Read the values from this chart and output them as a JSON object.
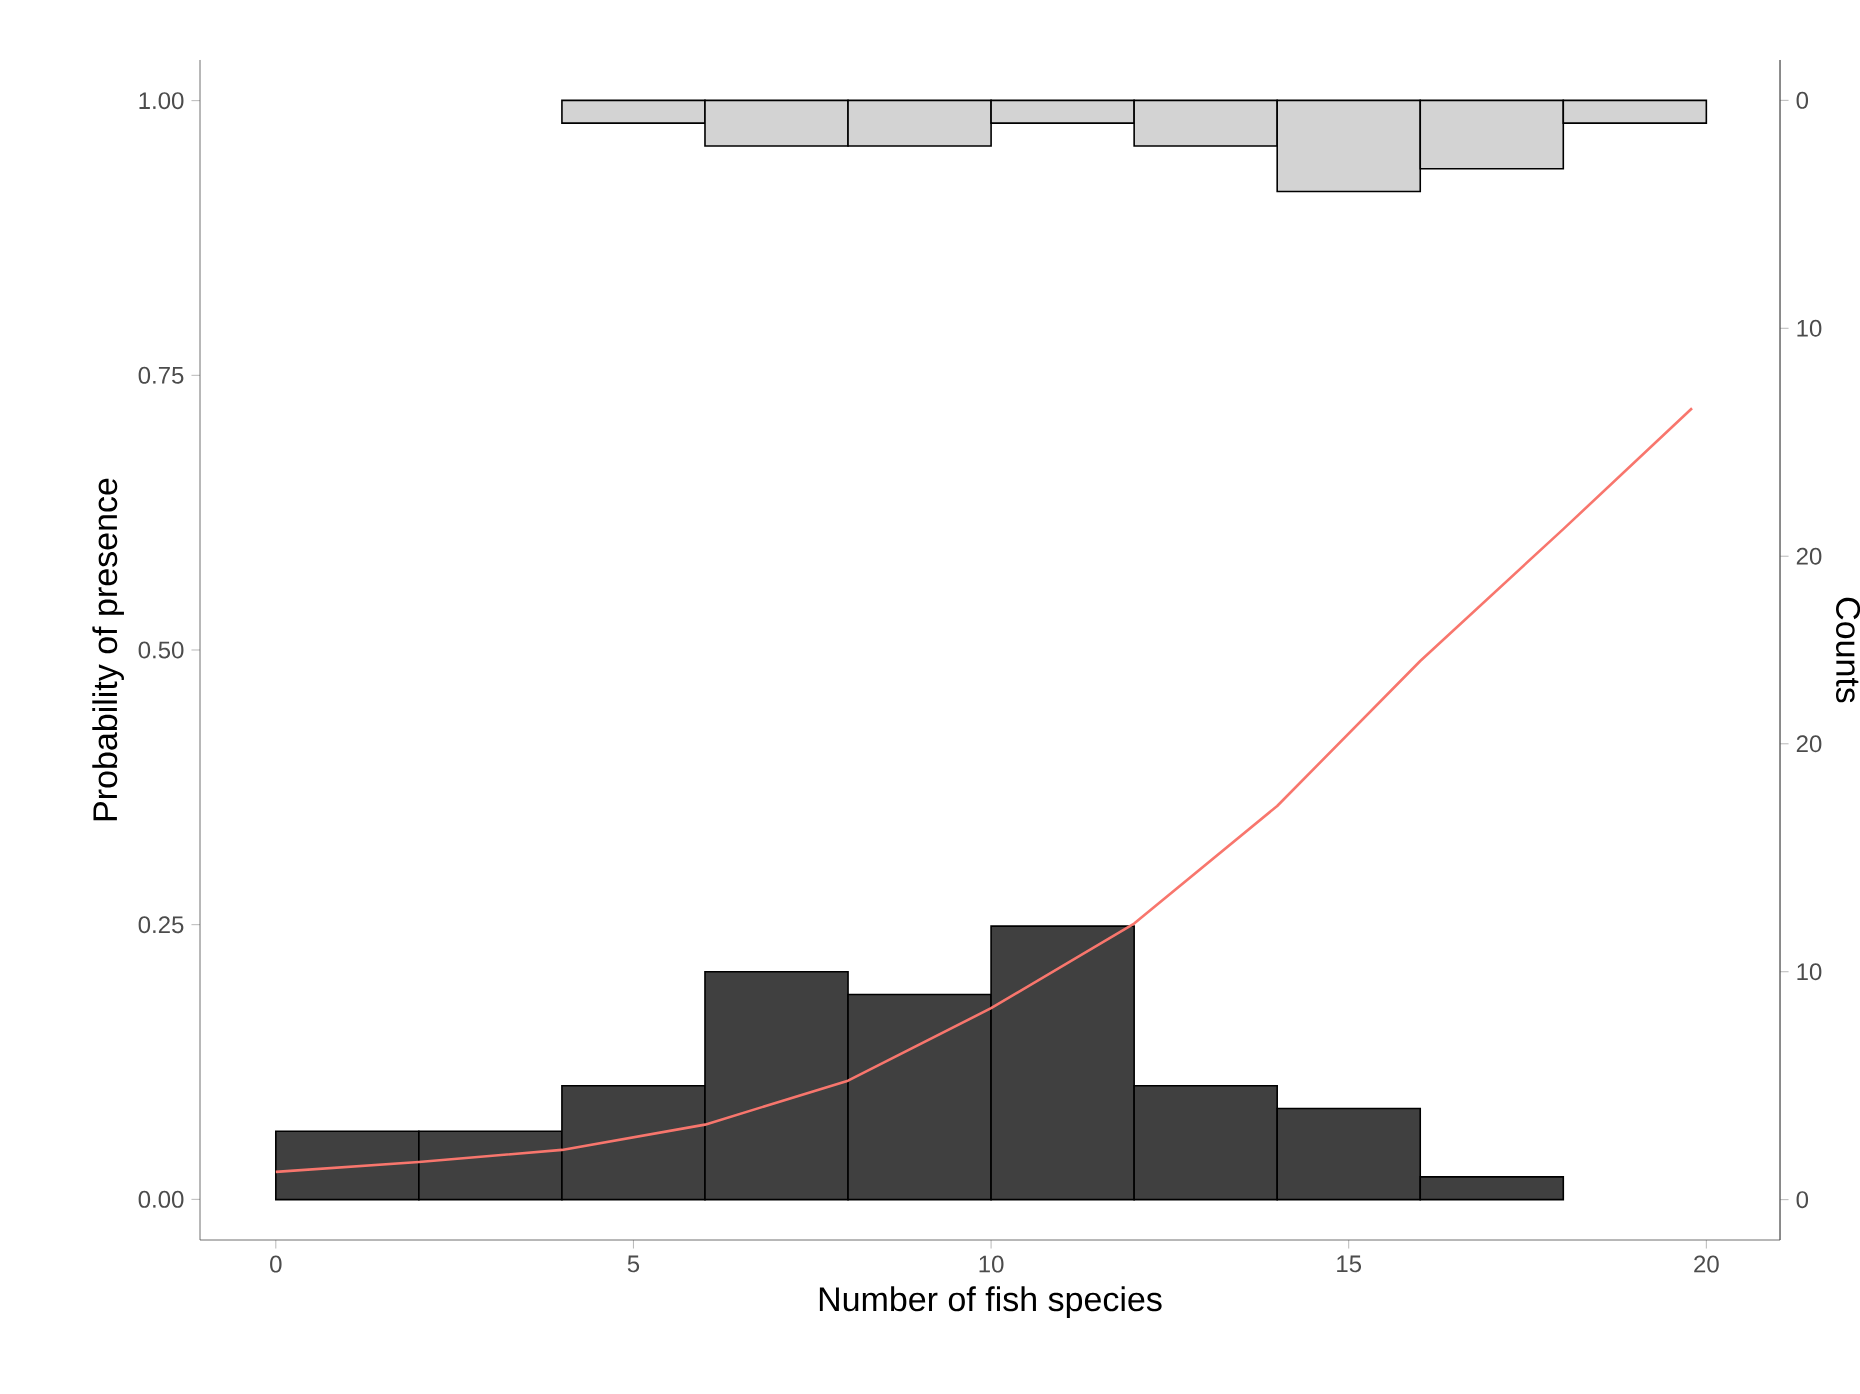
{
  "chart_data": {
    "type": "line",
    "xlabel": "Number of fish species",
    "ylabel": "Probability of presence",
    "y2label": "Counts",
    "xlim": [
      -1.06,
      21.03
    ],
    "xticks": [
      0,
      5,
      10,
      15,
      20
    ],
    "ylim": [
      -0.037,
      1.037
    ],
    "yticks": [
      {
        "value": 0,
        "label": "0.00"
      },
      {
        "value": 0.25,
        "label": "0.25"
      },
      {
        "value": 0.5,
        "label": "0.50"
      },
      {
        "value": 0.75,
        "label": "0.75"
      },
      {
        "value": 1,
        "label": "1.00"
      }
    ],
    "y2lim": [
      -1.77,
      50
    ],
    "y2ticks": [
      0,
      10,
      20
    ],
    "y3lim": [
      50,
      -1.77
    ],
    "y3ticks": [
      0,
      10,
      20
    ],
    "series": [
      {
        "type": "histogram",
        "axis": "y2",
        "color": "#404040",
        "bins": [
          0,
          2,
          4,
          6,
          8,
          10,
          12,
          14,
          16,
          18
        ],
        "values": [
          3,
          3,
          5,
          10,
          9,
          12,
          5,
          4,
          1
        ]
      },
      {
        "type": "histogram",
        "axis": "y3",
        "color": "#d3d3d3",
        "bins": [
          4,
          6,
          8,
          10,
          12,
          14,
          16,
          18,
          20
        ],
        "values": [
          1,
          2,
          2,
          1,
          2,
          4,
          3,
          1
        ]
      },
      {
        "color": "#f8766d",
        "x": [
          0,
          2,
          4,
          6,
          8,
          10,
          12,
          14,
          16,
          18,
          19.8
        ],
        "values": [
          0.025,
          0.034,
          0.045,
          0.068,
          0.108,
          0.174,
          0.251,
          0.358,
          0.49,
          0.61,
          0.72
        ]
      }
    ]
  }
}
